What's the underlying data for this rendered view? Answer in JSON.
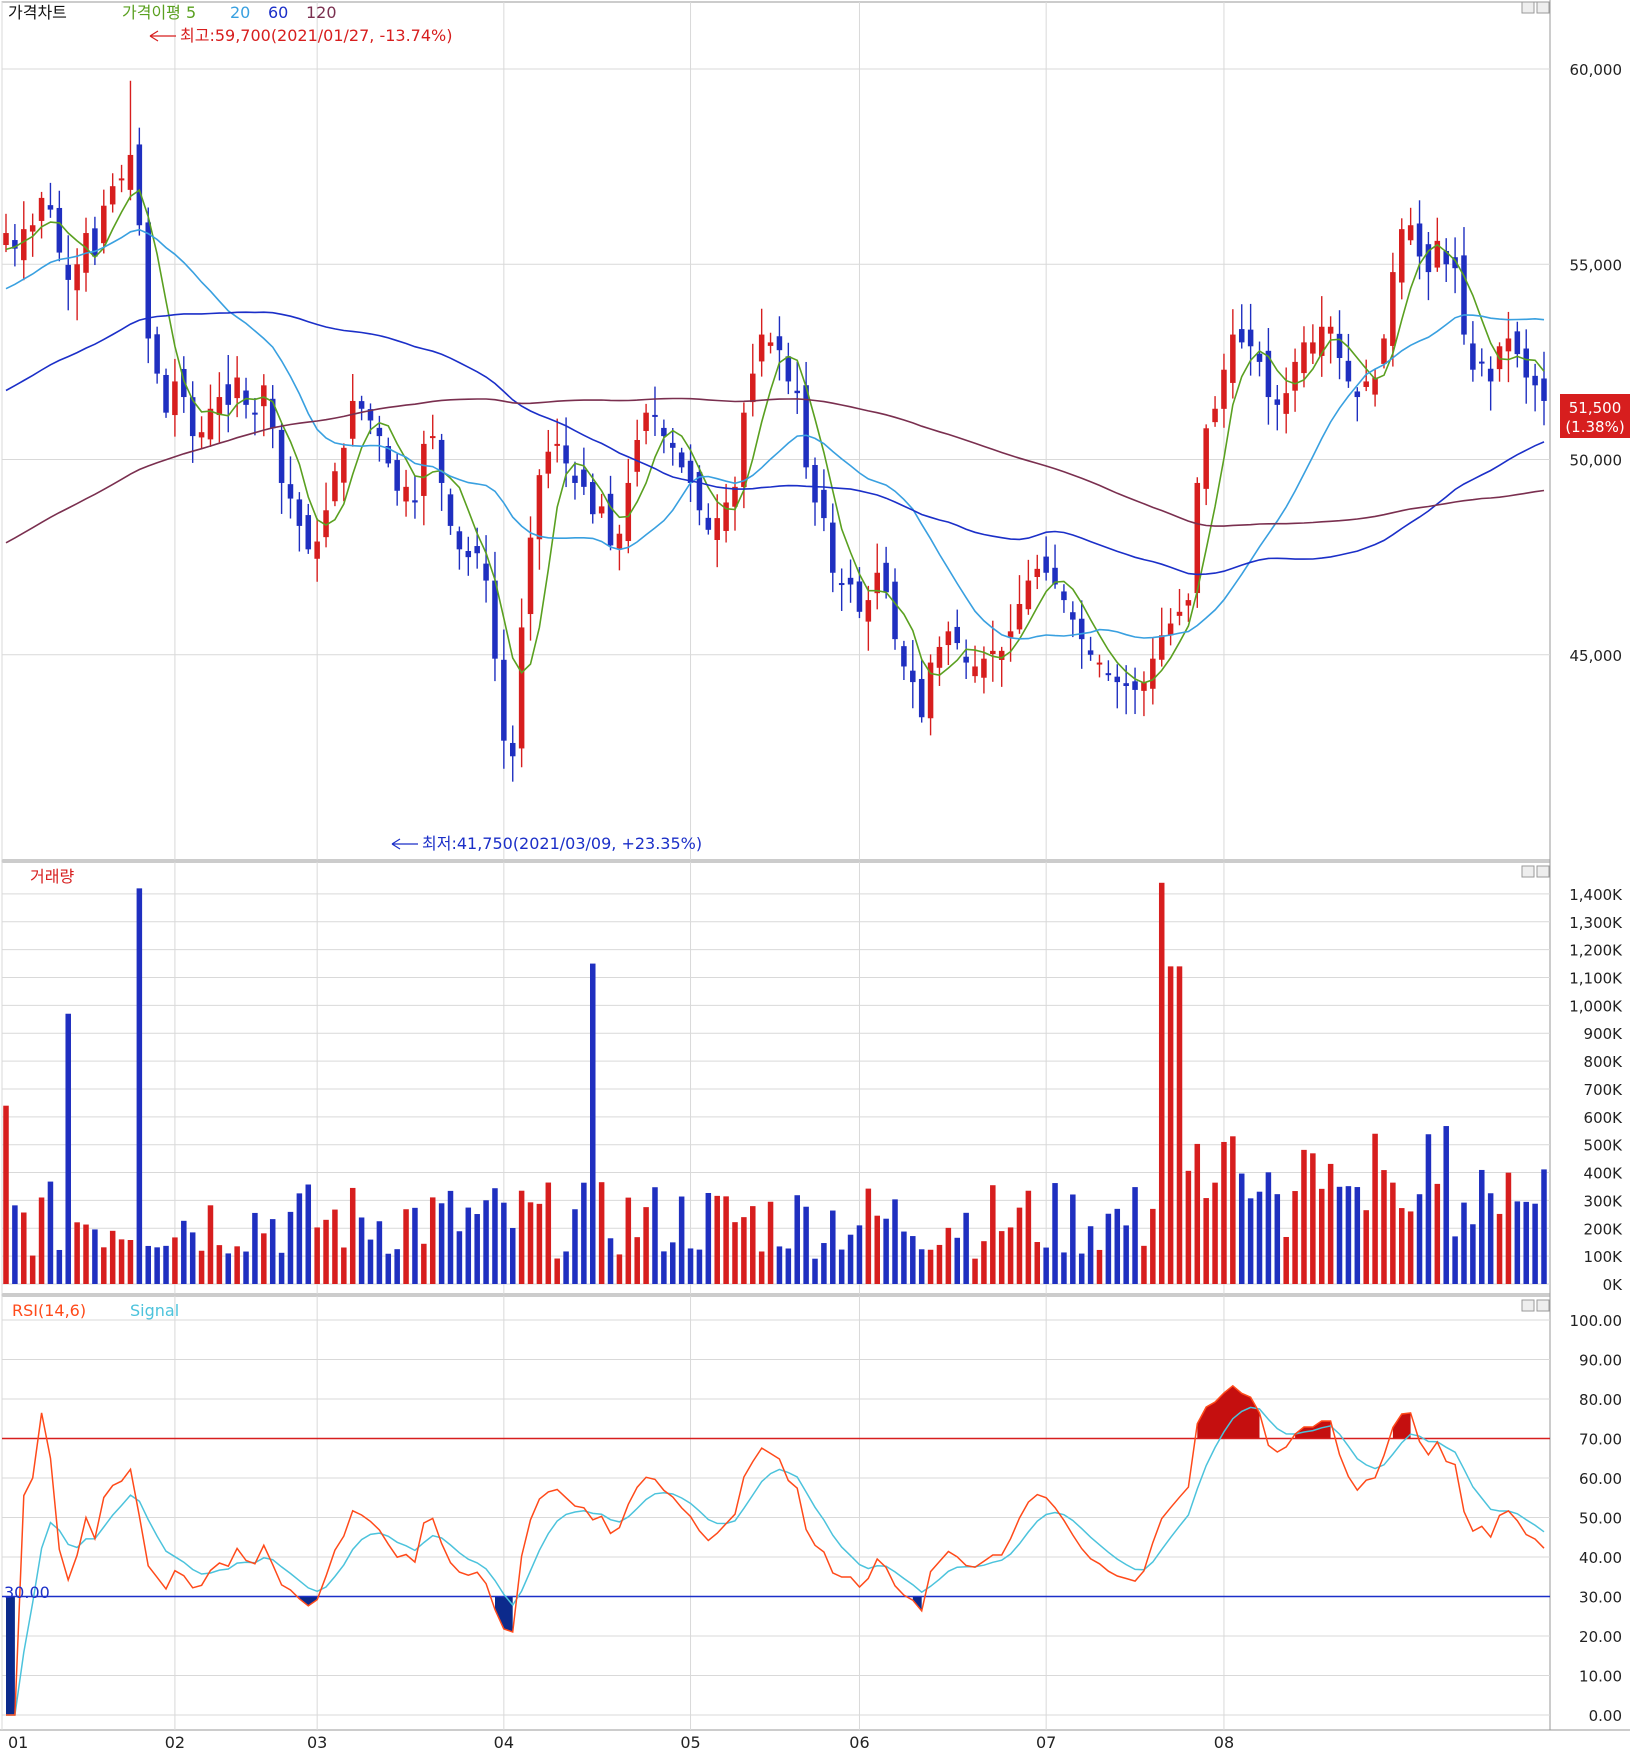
{
  "colors": {
    "up": "#d71e1e",
    "down": "#1f2fc0",
    "ma5": "#5aa020",
    "ma20": "#39a0e0",
    "ma60": "#1b2fc8",
    "ma120": "#7a2f4f",
    "rsi": "#ff4a1a",
    "signal": "#4cc3dc",
    "grid": "#d9d9d9",
    "overbought_fill": "#c50f0f",
    "oversold_fill": "#0c2a8c"
  },
  "panels": {
    "price": {
      "legend": [
        {
          "label": "가격차트",
          "color": "#111111"
        },
        {
          "label": "가격이평 5",
          "color": "#5aa020"
        },
        {
          "label": "20",
          "color": "#39a0e0"
        },
        {
          "label": "60",
          "color": "#1b2fc8"
        },
        {
          "label": "120",
          "color": "#7a2f4f"
        }
      ],
      "high_note": "최고:59,700(2021/01/27, -13.74%)",
      "low_note": "최저:41,750(2021/03/09, +23.35%)",
      "last_price": "51,500",
      "last_change": "(1.38%)"
    },
    "volume": {
      "legend": [
        {
          "label": "거래량",
          "color": "#d71e1e"
        }
      ]
    },
    "rsi": {
      "legend": [
        {
          "label": "RSI(14,6)",
          "color": "#ff4a1a"
        },
        {
          "label": "Signal",
          "color": "#4cc3dc"
        }
      ],
      "level_label": "30.00"
    }
  },
  "chart_data": [
    {
      "type": "candlestick",
      "title": "가격차트",
      "y_ticks": [
        "60,000",
        "55,000",
        "50,000",
        "45,000"
      ],
      "x_ticks": [
        "01",
        "02",
        "03",
        "04",
        "05",
        "06",
        "07",
        "08"
      ],
      "ylim": [
        40000,
        61000
      ],
      "high": {
        "value": 59700,
        "date": "2021/01/27"
      },
      "low": {
        "value": 41750,
        "date": "2021/03/09"
      },
      "last": 51500,
      "close_series": [
        55800,
        55400,
        55900,
        56000,
        56700,
        56400,
        55300,
        54600,
        55000,
        55800,
        55200,
        56500,
        57000,
        57200,
        57800,
        56000,
        53100,
        52200,
        51200,
        52000,
        51600,
        50600,
        50700,
        51300,
        51600,
        51400,
        52100,
        51400,
        51200,
        51900,
        50800,
        49400,
        49000,
        48300,
        47700,
        47900,
        48700,
        49700,
        50300,
        51500,
        51300,
        51000,
        50600,
        49900,
        49200,
        49300,
        48900,
        50400,
        50600,
        49400,
        48300,
        47700,
        47500,
        47600,
        46900,
        44900,
        42800,
        42400,
        45700,
        48000,
        49600,
        50200,
        50400,
        49900,
        49400,
        49300,
        48600,
        48800,
        47800,
        48100,
        49400,
        50500,
        51200,
        51100,
        50600,
        50300,
        49800,
        49400,
        48700,
        48200,
        48500,
        48900,
        49300,
        51200,
        52200,
        53200,
        53000,
        52800,
        52000,
        51700,
        49800,
        48900,
        48500,
        47100,
        46800,
        46800,
        46100,
        46400,
        47100,
        46600,
        45400,
        44700,
        44300,
        43400,
        44800,
        45200,
        45600,
        45300,
        44800,
        44700,
        44900,
        45100,
        45100,
        45600,
        46300,
        46900,
        47200,
        47100,
        46800,
        46400,
        45900,
        45400,
        45000,
        44800,
        44500,
        44300,
        44200,
        44100,
        44300,
        44900,
        45500,
        45800,
        46100,
        46400,
        49400,
        50800,
        51300,
        52300,
        53200,
        53000,
        52900,
        52500,
        51600,
        51400,
        51700,
        52500,
        53000,
        53000,
        53400,
        53400,
        52600,
        52000,
        51600,
        52000,
        52100,
        53100,
        54800,
        55900,
        56000,
        55200,
        54800,
        55600,
        55000,
        54900,
        53200,
        52300,
        52500,
        52000,
        52900,
        53100,
        52700,
        52100,
        51900,
        51500
      ]
    },
    {
      "type": "bar",
      "title": "거래량",
      "y_ticks": [
        "1,400K",
        "1,300K",
        "1,200K",
        "1,100K",
        "1,000K",
        "900K",
        "800K",
        "700K",
        "600K",
        "500K",
        "400K",
        "300K",
        "200K",
        "100K",
        "0K"
      ],
      "ylim": [
        0,
        1450000
      ],
      "highlights": {
        "max_1": 1440000,
        "max_2": 1420000,
        "mar_peak": 1140000
      }
    },
    {
      "type": "line",
      "title": "RSI(14,6)",
      "series_names": [
        "RSI(14,6)",
        "Signal"
      ],
      "y_ticks": [
        "100.00",
        "90.00",
        "80.00",
        "70.00",
        "60.00",
        "50.00",
        "40.00",
        "30.00",
        "20.00",
        "10.00",
        "0.00"
      ],
      "ylim": [
        0,
        100
      ],
      "levels": [
        70,
        30
      ]
    }
  ]
}
